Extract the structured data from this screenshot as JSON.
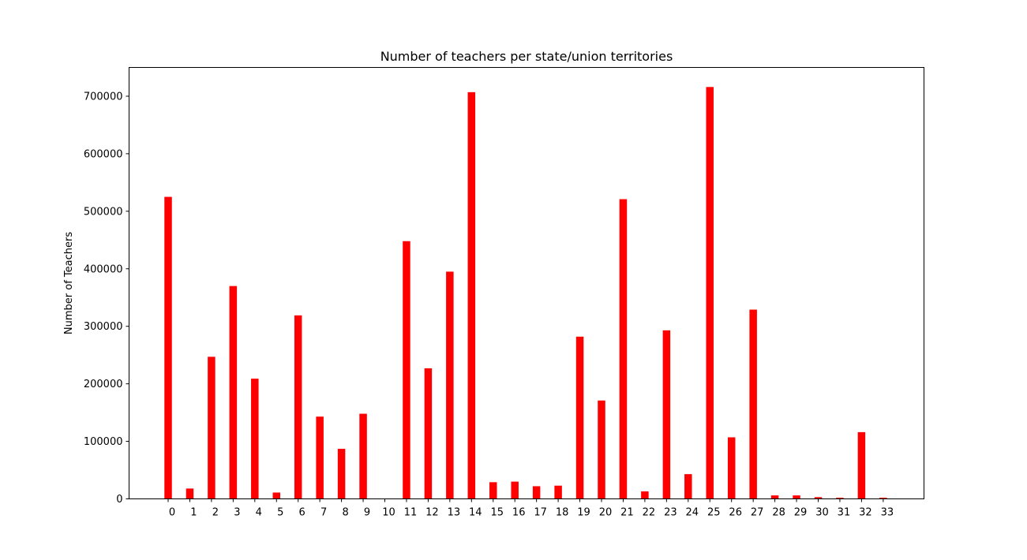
{
  "chart_data": {
    "type": "bar",
    "title": "Number of teachers per state/union territories",
    "xlabel": "",
    "ylabel": "Number of Teachers",
    "categories": [
      "0",
      "1",
      "2",
      "3",
      "4",
      "5",
      "6",
      "7",
      "8",
      "9",
      "10",
      "11",
      "12",
      "13",
      "14",
      "15",
      "16",
      "17",
      "18",
      "19",
      "20",
      "21",
      "22",
      "23",
      "24",
      "25",
      "26",
      "27",
      "28",
      "29",
      "30",
      "31",
      "32",
      "33"
    ],
    "values": [
      525000,
      18000,
      247000,
      370000,
      209000,
      11000,
      319000,
      143000,
      87000,
      148000,
      0,
      448000,
      227000,
      395000,
      707000,
      29000,
      30000,
      22000,
      23000,
      282000,
      171000,
      521000,
      13000,
      293000,
      43000,
      716000,
      107000,
      329000,
      6000,
      6000,
      3000,
      2000,
      116000,
      2000
    ],
    "yticks": [
      0,
      100000,
      200000,
      300000,
      400000,
      500000,
      600000,
      700000
    ],
    "ytick_labels": [
      "0",
      "100000",
      "200000",
      "300000",
      "400000",
      "500000",
      "600000",
      "700000"
    ],
    "ylim": [
      0,
      750000
    ],
    "bar_color": "#ff0000",
    "grid": false,
    "legend": "none"
  }
}
